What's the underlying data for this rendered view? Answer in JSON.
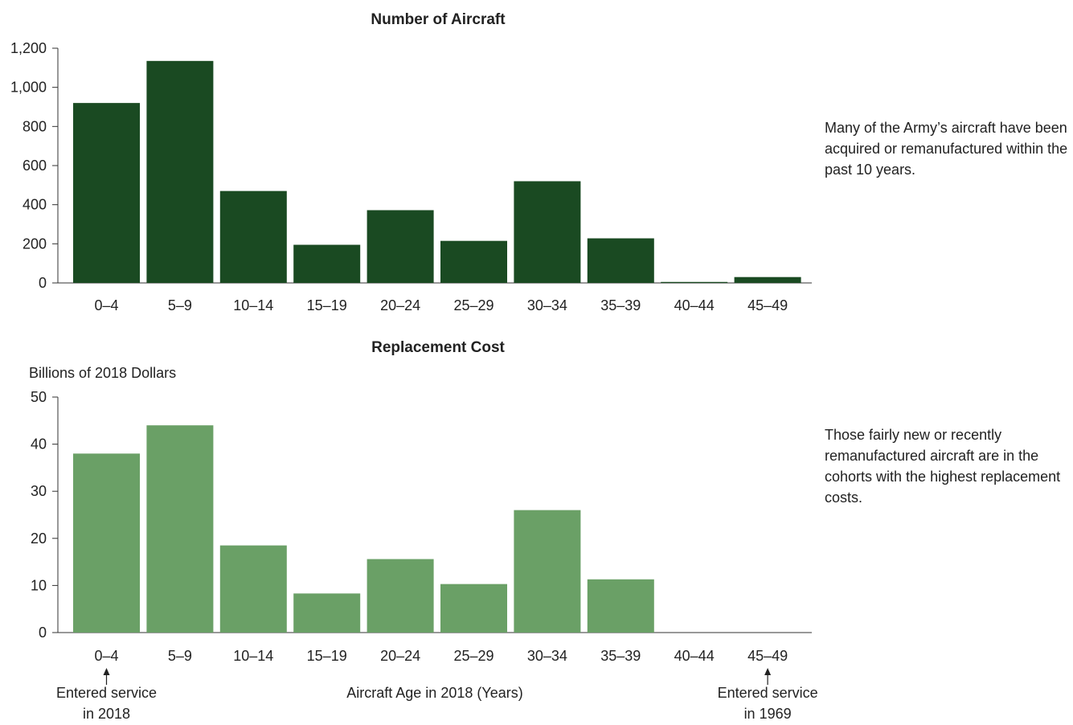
{
  "chart_data": [
    {
      "type": "bar",
      "title": "Number of Aircraft",
      "ylabel": "",
      "xlabel": "",
      "categories": [
        "0–4",
        "5–9",
        "10–14",
        "15–19",
        "20–24",
        "25–29",
        "30–34",
        "35–39",
        "40–44",
        "45–49"
      ],
      "values": [
        920,
        1135,
        470,
        195,
        372,
        215,
        520,
        228,
        5,
        30
      ],
      "ylim": [
        0,
        1200
      ],
      "yticks": [
        0,
        200,
        400,
        600,
        800,
        1000,
        1200
      ],
      "ytick_labels": [
        "0",
        "200",
        "400",
        "600",
        "800",
        "1,000",
        "1,200"
      ],
      "color": "#1a4a22",
      "grid": false
    },
    {
      "type": "bar",
      "title": "Replacement Cost",
      "ylabel": "Billions of 2018 Dollars",
      "xlabel": "Aircraft Age in 2018 (Years)",
      "categories": [
        "0–4",
        "5–9",
        "10–14",
        "15–19",
        "20–24",
        "25–29",
        "30–34",
        "35–39",
        "40–44",
        "45–49"
      ],
      "values": [
        38,
        44,
        18.5,
        8.3,
        15.6,
        10.3,
        26,
        11.3,
        0,
        0
      ],
      "ylim": [
        0,
        50
      ],
      "yticks": [
        0,
        10,
        20,
        30,
        40,
        50
      ],
      "ytick_labels": [
        "0",
        "10",
        "20",
        "30",
        "40",
        "50"
      ],
      "color": "#6aa066",
      "grid": false,
      "annotations": [
        {
          "category": "0–4",
          "lines": [
            "Entered service",
            "in 2018"
          ]
        },
        {
          "category": "45–49",
          "lines": [
            "Entered service",
            "in 1969"
          ]
        }
      ]
    }
  ],
  "notes": {
    "top": "Many of the Army’s aircraft have been acquired or remanufactured within the past 10 years.",
    "bottom": "Those fairly new or recently remanufactured aircraft are in the cohorts with the highest replacement costs."
  }
}
